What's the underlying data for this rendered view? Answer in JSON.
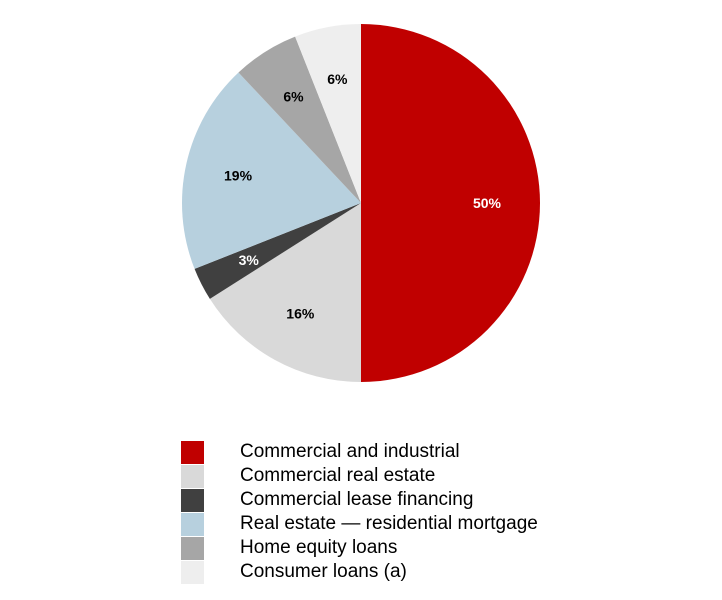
{
  "chart_data": {
    "type": "pie",
    "title": "",
    "legend_position": "bottom",
    "start_angle": "12 o'clock",
    "direction": "clockwise",
    "slices": [
      {
        "label": "Commercial and industrial",
        "value": 50,
        "value_label": "50%",
        "color": "#c00000",
        "label_color": "#ffffff"
      },
      {
        "label": "Commercial real estate",
        "value": 16,
        "value_label": "16%",
        "color": "#d9d9d9",
        "label_color": "#000000"
      },
      {
        "label": "Commercial lease financing",
        "value": 3,
        "value_label": "3%",
        "color": "#404040",
        "label_color": "#ffffff"
      },
      {
        "label": "Real estate — residential mortgage",
        "value": 19,
        "value_label": "19%",
        "color": "#b7d0de",
        "label_color": "#000000"
      },
      {
        "label": "Home equity loans",
        "value": 6,
        "value_label": "6%",
        "color": "#a6a6a6",
        "label_color": "#000000"
      },
      {
        "label": "Consumer loans (a)",
        "value": 6,
        "value_label": "6%",
        "color": "#eeeeee",
        "label_color": "#000000"
      }
    ]
  }
}
